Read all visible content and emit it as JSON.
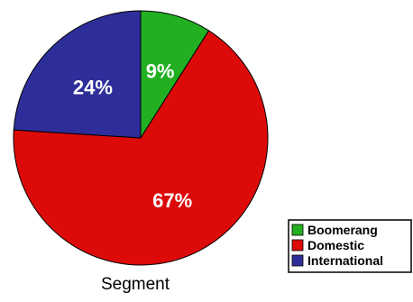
{
  "chart_data": {
    "type": "pie",
    "xlabel": "Segment",
    "slices": [
      {
        "label": "Boomerang",
        "value": 9,
        "value_label": "9%",
        "color": "#22b022"
      },
      {
        "label": "Domestic",
        "value": 67,
        "value_label": "67%",
        "color": "#dd0a0a"
      },
      {
        "label": "International",
        "value": 24,
        "value_label": "24%",
        "color": "#2e2e9a"
      }
    ],
    "legend_position": "bottom-right",
    "start_angle": "12 o'clock",
    "direction": "clockwise"
  }
}
